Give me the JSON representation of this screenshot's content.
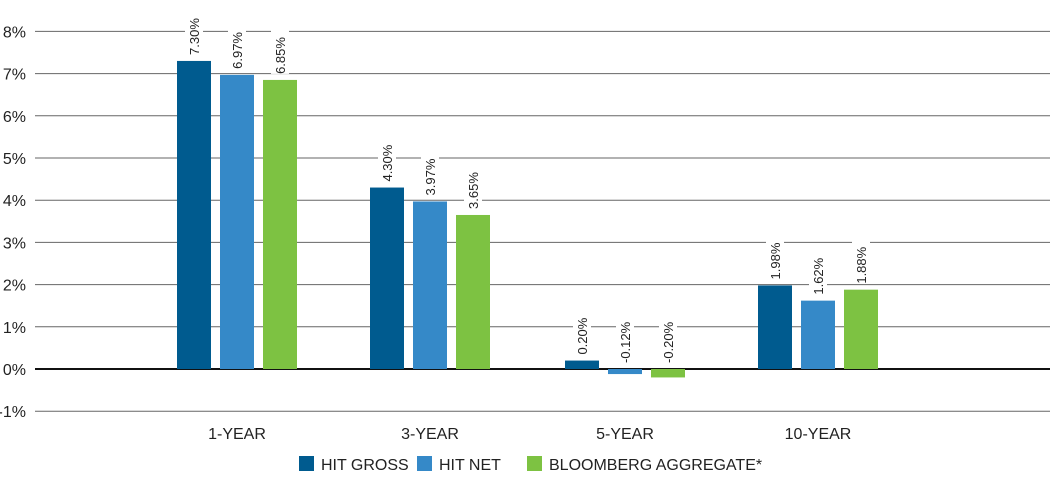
{
  "chart_data": {
    "type": "bar",
    "title": "",
    "xlabel": "",
    "ylabel": "",
    "categories": [
      "1-YEAR",
      "3-YEAR",
      "5-YEAR",
      "10-YEAR"
    ],
    "series": [
      {
        "name": "HIT GROSS",
        "color": "#005b8f",
        "values": [
          7.3,
          4.3,
          0.2,
          1.98
        ],
        "labels": [
          "7.30%",
          "4.30%",
          "0.20%",
          "1.98%"
        ]
      },
      {
        "name": "HIT NET",
        "color": "#3589c8",
        "values": [
          6.97,
          3.97,
          -0.12,
          1.62
        ],
        "labels": [
          "6.97%",
          "3.97%",
          "-0.12%",
          "1.62%"
        ]
      },
      {
        "name": "BLOOMBERG AGGREGATE*",
        "color": "#7dc242",
        "values": [
          6.85,
          3.65,
          -0.2,
          1.88
        ],
        "labels": [
          "6.85%",
          "3.65%",
          "-0.20%",
          "1.88%"
        ]
      }
    ],
    "yticks": [
      "-1%",
      "0%",
      "1%",
      "2%",
      "3%",
      "4%",
      "5%",
      "6%",
      "7%",
      "8%"
    ],
    "ylim": [
      -1,
      8
    ],
    "grid": true,
    "legend": "bottom-center"
  }
}
